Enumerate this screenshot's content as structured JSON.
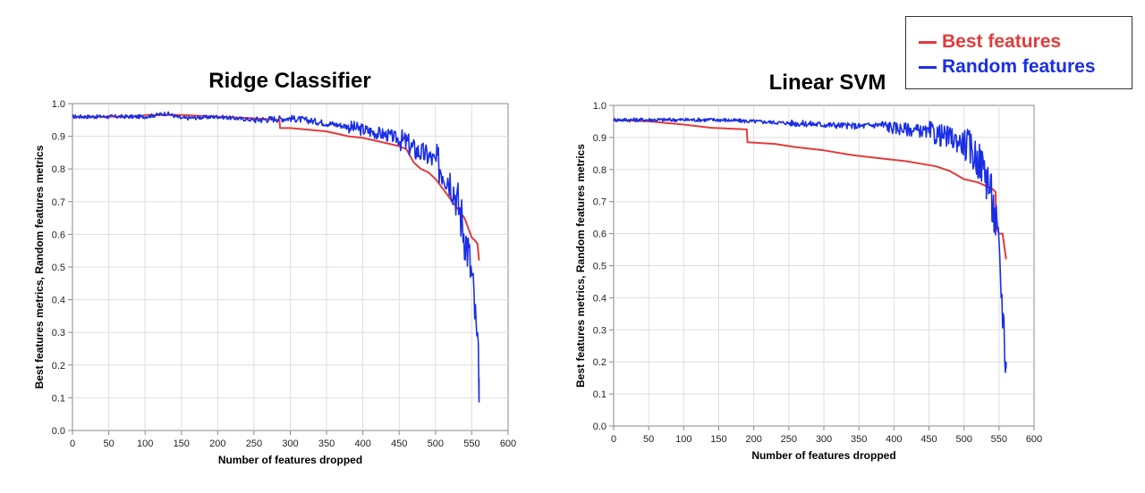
{
  "colors": {
    "best": "#e23b3b",
    "random": "#1a2ee6",
    "grid": "#dddddd",
    "axis": "#888888"
  },
  "legend": {
    "items": [
      {
        "label": "Best features",
        "color": "#e23b3b"
      },
      {
        "label": "Random features",
        "color": "#1a2ee6"
      }
    ]
  },
  "chart_data": [
    {
      "type": "line",
      "title": "Ridge Classifier",
      "xlabel": "Number of features dropped",
      "ylabel": "Best features metrics, Random features metrics",
      "xlim": [
        0,
        600
      ],
      "ylim": [
        0.0,
        1.0
      ],
      "xticks": [
        0,
        50,
        100,
        150,
        200,
        250,
        300,
        350,
        400,
        450,
        500,
        550,
        600
      ],
      "yticks": [
        0.0,
        0.1,
        0.2,
        0.3,
        0.4,
        0.5,
        0.6,
        0.7,
        0.8,
        0.9,
        1.0
      ],
      "grid": true,
      "series": [
        {
          "name": "Best features",
          "color": "#e23b3b",
          "x": [
            0,
            50,
            90,
            100,
            150,
            200,
            250,
            285,
            286,
            300,
            350,
            380,
            400,
            430,
            450,
            460,
            470,
            480,
            490,
            500,
            510,
            520,
            530,
            540,
            545,
            550,
            555,
            558,
            560
          ],
          "y": [
            0.96,
            0.96,
            0.96,
            0.965,
            0.965,
            0.96,
            0.955,
            0.95,
            0.925,
            0.925,
            0.915,
            0.9,
            0.895,
            0.88,
            0.87,
            0.86,
            0.82,
            0.8,
            0.79,
            0.77,
            0.74,
            0.71,
            0.68,
            0.65,
            0.62,
            0.59,
            0.58,
            0.57,
            0.52
          ]
        },
        {
          "name": "Random features",
          "color": "#1a2ee6",
          "x": [
            0,
            50,
            100,
            130,
            150,
            200,
            250,
            300,
            320,
            350,
            380,
            400,
            420,
            440,
            450,
            460,
            470,
            480,
            490,
            500,
            510,
            520,
            525,
            530,
            535,
            540,
            545,
            548,
            550,
            553,
            556,
            560
          ],
          "y": [
            0.96,
            0.96,
            0.96,
            0.97,
            0.955,
            0.96,
            0.95,
            0.955,
            0.95,
            0.94,
            0.93,
            0.92,
            0.91,
            0.9,
            0.89,
            0.88,
            0.86,
            0.85,
            0.84,
            0.82,
            0.8,
            0.77,
            0.74,
            0.7,
            0.66,
            0.6,
            0.55,
            0.5,
            0.47,
            0.4,
            0.3,
            0.16
          ]
        }
      ]
    },
    {
      "type": "line",
      "title": "Linear SVM",
      "xlabel": "Number of features dropped",
      "ylabel": "Best features metrics, Random features metrics",
      "xlim": [
        0,
        600
      ],
      "ylim": [
        0.0,
        1.0
      ],
      "xticks": [
        0,
        50,
        100,
        150,
        200,
        250,
        300,
        350,
        400,
        450,
        500,
        550,
        600
      ],
      "yticks": [
        0.0,
        0.1,
        0.2,
        0.3,
        0.4,
        0.5,
        0.6,
        0.7,
        0.8,
        0.9,
        1.0
      ],
      "grid": true,
      "series": [
        {
          "name": "Best features",
          "color": "#e23b3b",
          "x": [
            0,
            50,
            100,
            140,
            190,
            191,
            230,
            260,
            300,
            340,
            380,
            420,
            460,
            480,
            500,
            520,
            540,
            545,
            546,
            550,
            555,
            560
          ],
          "y": [
            0.955,
            0.95,
            0.94,
            0.93,
            0.925,
            0.885,
            0.88,
            0.87,
            0.86,
            0.845,
            0.835,
            0.825,
            0.81,
            0.795,
            0.77,
            0.76,
            0.74,
            0.73,
            0.62,
            0.6,
            0.6,
            0.52
          ]
        },
        {
          "name": "Random features",
          "color": "#1a2ee6",
          "x": [
            0,
            50,
            100,
            150,
            200,
            250,
            300,
            350,
            380,
            400,
            420,
            440,
            460,
            480,
            490,
            500,
            510,
            520,
            530,
            535,
            540,
            545,
            548,
            551,
            554,
            557,
            560
          ],
          "y": [
            0.955,
            0.955,
            0.955,
            0.955,
            0.95,
            0.945,
            0.94,
            0.935,
            0.94,
            0.93,
            0.925,
            0.92,
            0.91,
            0.9,
            0.89,
            0.88,
            0.86,
            0.83,
            0.8,
            0.76,
            0.7,
            0.64,
            0.58,
            0.5,
            0.4,
            0.3,
            0.18
          ]
        }
      ]
    }
  ]
}
